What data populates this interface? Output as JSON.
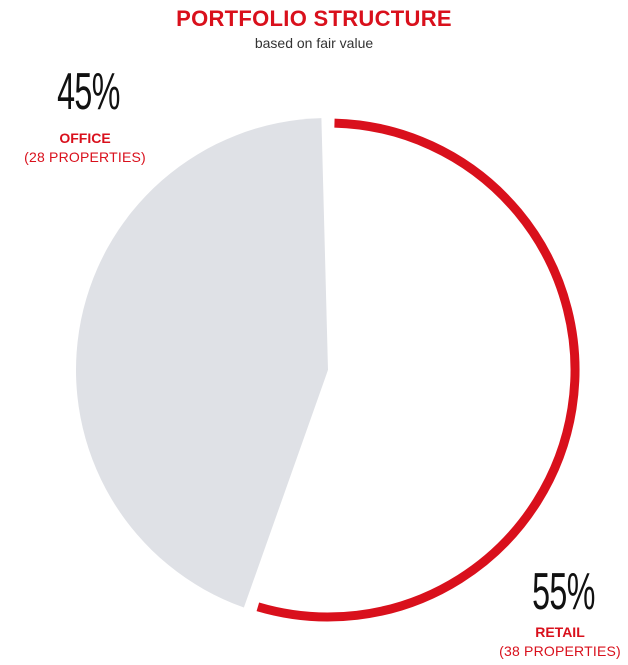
{
  "chart_data": {
    "type": "pie",
    "title": "PORTFOLIO STRUCTURE",
    "subtitle": "based on fair value",
    "slices": [
      {
        "label": "OFFICE",
        "detail": "(28 PROPERTIES)",
        "value": 45,
        "percent_label": "45%",
        "color": "#dfe1e6"
      },
      {
        "label": "RETAIL",
        "detail": "(38 PROPERTIES)",
        "value": 55,
        "percent_label": "55%",
        "color": "#d9101c"
      }
    ]
  }
}
